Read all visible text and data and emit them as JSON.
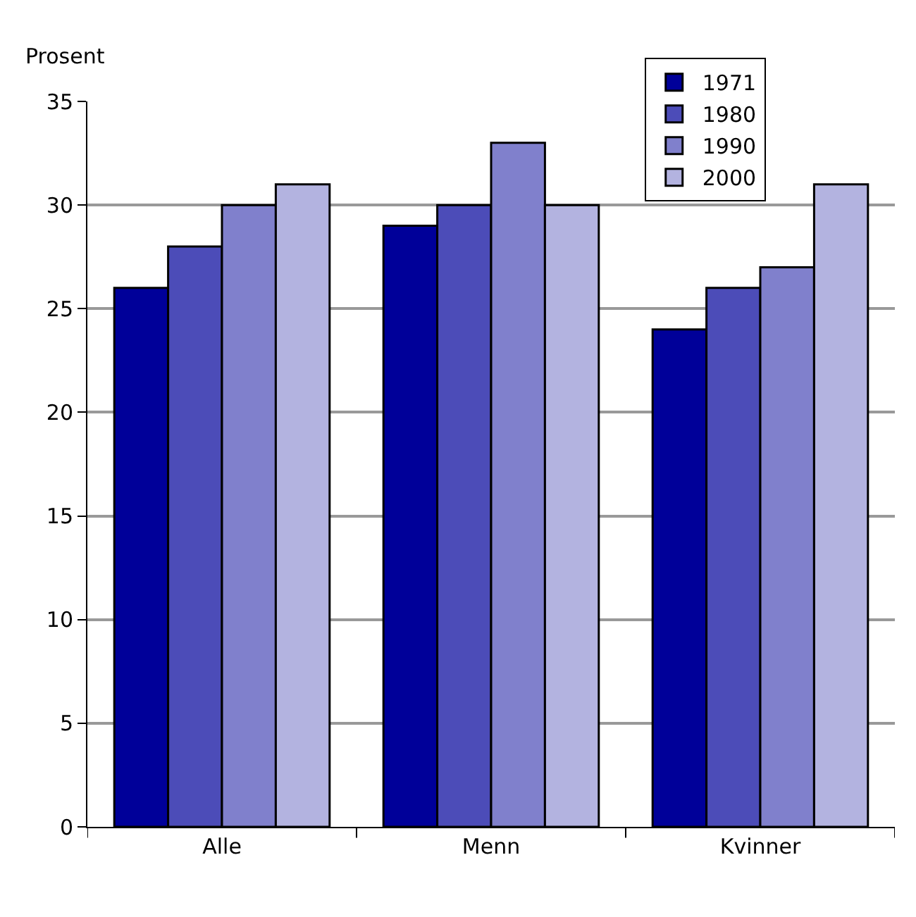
{
  "chart_data": {
    "type": "bar",
    "ylabel": "Prosent",
    "categories": [
      "Alle",
      "Menn",
      "Kvinner"
    ],
    "series": [
      {
        "name": "1971",
        "color": "#000099",
        "values": [
          26,
          29,
          24
        ]
      },
      {
        "name": "1980",
        "color": "#4c4cb8",
        "values": [
          28,
          30,
          26
        ]
      },
      {
        "name": "1990",
        "color": "#8080cc",
        "values": [
          30,
          33,
          27
        ]
      },
      {
        "name": "2000",
        "color": "#b3b3e0",
        "values": [
          31,
          30,
          31
        ]
      }
    ],
    "ylim": [
      0,
      35
    ],
    "yticks": [
      0,
      5,
      10,
      15,
      20,
      25,
      30,
      35
    ],
    "grid": "y",
    "legend": "top right"
  }
}
